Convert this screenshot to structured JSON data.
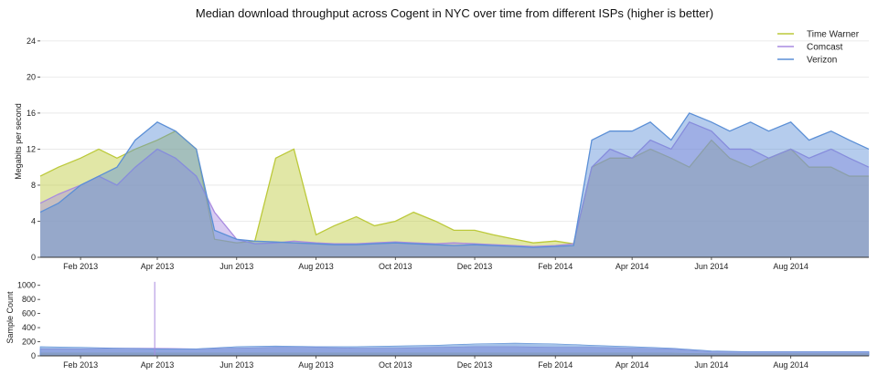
{
  "chart_data": [
    {
      "type": "area",
      "title": "Median download throughput across Cogent in NYC over time from different ISPs (higher is better)",
      "ylabel": "Megabits per second",
      "xlabel": "",
      "ylim": [
        0,
        25
      ],
      "yticks": [
        0,
        4,
        8,
        12,
        16,
        20,
        24
      ],
      "xlim": [
        "2013-01-01",
        "2014-09-30"
      ],
      "x_tick_labels": [
        "Feb 2013",
        "Apr 2013",
        "Jun 2013",
        "Aug 2013",
        "Oct 2013",
        "Dec 2013",
        "Feb 2014",
        "Apr 2014",
        "Jun 2014",
        "Aug 2014"
      ],
      "x_tick_dates": [
        "2013-02-01",
        "2013-04-01",
        "2013-06-01",
        "2013-08-01",
        "2013-10-01",
        "2013-12-01",
        "2014-02-01",
        "2014-04-01",
        "2014-06-01",
        "2014-08-01"
      ],
      "grid": true,
      "legend_position": "top-right",
      "series": [
        {
          "name": "Time Warner",
          "color": "#bcc93a",
          "x": [
            "2013-01-01",
            "2013-01-15",
            "2013-02-01",
            "2013-02-15",
            "2013-03-01",
            "2013-03-15",
            "2013-04-01",
            "2013-04-15",
            "2013-05-01",
            "2013-05-15",
            "2013-06-01",
            "2013-06-15",
            "2013-07-01",
            "2013-07-15",
            "2013-08-01",
            "2013-08-15",
            "2013-09-01",
            "2013-09-15",
            "2013-10-01",
            "2013-10-15",
            "2013-11-01",
            "2013-11-15",
            "2013-12-01",
            "2013-12-15",
            "2014-01-01",
            "2014-01-15",
            "2014-02-01",
            "2014-02-15",
            "2014-03-01",
            "2014-03-15",
            "2014-04-01",
            "2014-04-15",
            "2014-05-01",
            "2014-05-15",
            "2014-06-01",
            "2014-06-15",
            "2014-07-01",
            "2014-07-15",
            "2014-08-01",
            "2014-08-15",
            "2014-09-01",
            "2014-09-15",
            "2014-09-30"
          ],
          "values": [
            9,
            10,
            11,
            12,
            11,
            12,
            13,
            14,
            12,
            2,
            1.6,
            1.8,
            11,
            12,
            2.5,
            3.5,
            4.5,
            3.5,
            4,
            5,
            4,
            3,
            3,
            2.5,
            2,
            1.6,
            1.8,
            1.5,
            10,
            11,
            11,
            12,
            11,
            10,
            13,
            11,
            10,
            11,
            12,
            10,
            10,
            9,
            9
          ]
        },
        {
          "name": "Comcast",
          "color": "#a98be0",
          "x": [
            "2013-01-01",
            "2013-01-15",
            "2013-02-01",
            "2013-02-15",
            "2013-03-01",
            "2013-03-15",
            "2013-04-01",
            "2013-04-15",
            "2013-05-01",
            "2013-05-15",
            "2013-06-01",
            "2013-06-15",
            "2013-07-01",
            "2013-07-15",
            "2013-08-01",
            "2013-08-15",
            "2013-09-01",
            "2013-09-15",
            "2013-10-01",
            "2013-10-15",
            "2013-11-01",
            "2013-11-15",
            "2013-12-01",
            "2013-12-15",
            "2014-01-01",
            "2014-01-15",
            "2014-02-01",
            "2014-02-15",
            "2014-03-01",
            "2014-03-15",
            "2014-04-01",
            "2014-04-15",
            "2014-05-01",
            "2014-05-15",
            "2014-06-01",
            "2014-06-15",
            "2014-07-01",
            "2014-07-15",
            "2014-08-01",
            "2014-08-15",
            "2014-09-01",
            "2014-09-15",
            "2014-09-30"
          ],
          "values": [
            6,
            7,
            8,
            9,
            8,
            10,
            12,
            11,
            9,
            5,
            2,
            1.5,
            1.6,
            1.8,
            1.6,
            1.5,
            1.5,
            1.6,
            1.7,
            1.6,
            1.5,
            1.6,
            1.5,
            1.4,
            1.3,
            1.2,
            1.3,
            1.5,
            10,
            12,
            11,
            13,
            12,
            15,
            14,
            12,
            12,
            11,
            12,
            11,
            12,
            11,
            10
          ]
        },
        {
          "name": "Verizon",
          "color": "#5b8fd6",
          "x": [
            "2013-01-01",
            "2013-01-15",
            "2013-02-01",
            "2013-02-15",
            "2013-03-01",
            "2013-03-15",
            "2013-04-01",
            "2013-04-15",
            "2013-05-01",
            "2013-05-15",
            "2013-06-01",
            "2013-06-15",
            "2013-07-01",
            "2013-07-15",
            "2013-08-01",
            "2013-08-15",
            "2013-09-01",
            "2013-09-15",
            "2013-10-01",
            "2013-10-15",
            "2013-11-01",
            "2013-11-15",
            "2013-12-01",
            "2013-12-15",
            "2014-01-01",
            "2014-01-15",
            "2014-02-01",
            "2014-02-15",
            "2014-03-01",
            "2014-03-15",
            "2014-04-01",
            "2014-04-15",
            "2014-05-01",
            "2014-05-15",
            "2014-06-01",
            "2014-06-15",
            "2014-07-01",
            "2014-07-15",
            "2014-08-01",
            "2014-08-15",
            "2014-09-01",
            "2014-09-15",
            "2014-09-30"
          ],
          "values": [
            5,
            6,
            8,
            9,
            10,
            13,
            15,
            14,
            12,
            3,
            2,
            1.8,
            1.7,
            1.6,
            1.5,
            1.4,
            1.4,
            1.5,
            1.6,
            1.5,
            1.4,
            1.3,
            1.4,
            1.3,
            1.2,
            1.1,
            1.2,
            1.3,
            13,
            14,
            14,
            15,
            13,
            16,
            15,
            14,
            15,
            14,
            15,
            13,
            14,
            13,
            12
          ]
        }
      ]
    },
    {
      "type": "bar",
      "title": "",
      "ylabel": "Sample Count",
      "xlabel": "",
      "ylim": [
        0,
        1100
      ],
      "yticks": [
        0,
        200,
        400,
        600,
        800,
        1000
      ],
      "xlim": [
        "2013-01-01",
        "2014-09-30"
      ],
      "x_tick_labels": [
        "Feb 2013",
        "Apr 2013",
        "Jun 2013",
        "Aug 2013",
        "Oct 2013",
        "Dec 2013",
        "Feb 2014",
        "Apr 2014",
        "Jun 2014",
        "Aug 2014"
      ],
      "x_tick_dates": [
        "2013-02-01",
        "2013-04-01",
        "2013-06-01",
        "2013-08-01",
        "2013-10-01",
        "2013-12-01",
        "2014-02-01",
        "2014-04-01",
        "2014-06-01",
        "2014-08-01"
      ],
      "series": [
        {
          "name": "Time Warner",
          "color": "#bcc93a",
          "x": [
            "2013-01-01",
            "2013-02-01",
            "2013-03-01",
            "2013-04-01",
            "2013-05-01",
            "2013-06-01",
            "2013-07-01",
            "2013-08-01",
            "2013-09-01",
            "2013-10-01",
            "2013-11-01",
            "2013-12-01",
            "2014-01-01",
            "2014-02-01",
            "2014-03-01",
            "2014-04-01",
            "2014-05-01",
            "2014-06-01",
            "2014-07-01",
            "2014-08-01",
            "2014-09-01",
            "2014-09-30"
          ],
          "values": [
            40,
            40,
            40,
            40,
            40,
            40,
            40,
            40,
            40,
            40,
            40,
            40,
            40,
            40,
            40,
            40,
            40,
            30,
            30,
            30,
            30,
            30
          ]
        },
        {
          "name": "Comcast",
          "color": "#a98be0",
          "x": [
            "2013-01-01",
            "2013-02-01",
            "2013-03-01",
            "2013-04-01",
            "2013-05-01",
            "2013-06-01",
            "2013-07-01",
            "2013-08-01",
            "2013-09-01",
            "2013-10-01",
            "2013-11-01",
            "2013-12-01",
            "2014-01-01",
            "2014-02-01",
            "2014-03-01",
            "2014-04-01",
            "2014-05-01",
            "2014-06-01",
            "2014-07-01",
            "2014-08-01",
            "2014-09-01",
            "2014-09-30"
          ],
          "values": [
            100,
            100,
            110,
            110,
            100,
            110,
            120,
            120,
            110,
            110,
            120,
            130,
            130,
            120,
            120,
            110,
            100,
            60,
            60,
            60,
            60,
            60
          ]
        },
        {
          "name": "Verizon",
          "color": "#5b8fd6",
          "x": [
            "2013-01-01",
            "2013-02-01",
            "2013-03-01",
            "2013-04-01",
            "2013-05-01",
            "2013-06-01",
            "2013-07-01",
            "2013-08-01",
            "2013-09-01",
            "2013-10-01",
            "2013-11-01",
            "2013-12-01",
            "2014-01-01",
            "2014-02-01",
            "2014-03-01",
            "2014-04-01",
            "2014-05-01",
            "2014-06-01",
            "2014-07-01",
            "2014-08-01",
            "2014-09-01",
            "2014-09-30"
          ],
          "values": [
            130,
            120,
            110,
            100,
            100,
            130,
            140,
            130,
            130,
            140,
            150,
            170,
            180,
            170,
            150,
            130,
            110,
            70,
            60,
            60,
            60,
            60
          ]
        }
      ],
      "annotations": [
        {
          "x": "2013-03-30",
          "value": 1050,
          "series": "Comcast",
          "note": "spike"
        }
      ]
    }
  ]
}
